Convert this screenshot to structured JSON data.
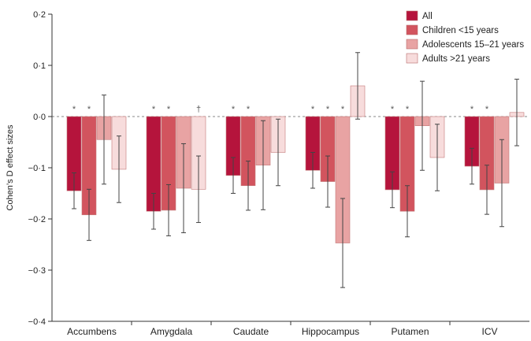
{
  "chart_data": {
    "type": "bar",
    "title": "",
    "xlabel": "",
    "ylabel": "Cohen’s D effect sizes",
    "ylim": [
      -0.4,
      0.2
    ],
    "yticks": [
      {
        "value": 0.2,
        "label": "0·2"
      },
      {
        "value": 0.1,
        "label": "0·1"
      },
      {
        "value": 0.0,
        "label": "0·0"
      },
      {
        "value": -0.1,
        "label": "−0·1"
      },
      {
        "value": -0.2,
        "label": "−0·2"
      },
      {
        "value": -0.3,
        "label": "−0·3"
      },
      {
        "value": -0.4,
        "label": "−0·4"
      }
    ],
    "categories": [
      "Accumbens",
      "Amygdala",
      "Caudate",
      "Hippocampus",
      "Putamen",
      "ICV"
    ],
    "legend_position": "top-right",
    "series": [
      {
        "name": "All",
        "color": "#b5143c",
        "values": [
          -0.145,
          -0.185,
          -0.115,
          -0.105,
          -0.143,
          -0.097
        ],
        "errors": [
          0.035,
          0.035,
          0.035,
          0.035,
          0.035,
          0.035
        ],
        "markers": [
          "*",
          "*",
          "*",
          "*",
          "*",
          "*"
        ]
      },
      {
        "name": "Children <15 years",
        "color": "#d2545e",
        "values": [
          -0.192,
          -0.183,
          -0.135,
          -0.127,
          -0.185,
          -0.143
        ],
        "errors": [
          0.05,
          0.05,
          0.048,
          0.05,
          0.05,
          0.048
        ],
        "markers": [
          "*",
          "*",
          "*",
          "*",
          "*",
          "*"
        ]
      },
      {
        "name": "Adolescents 15–21 years",
        "color": "#e8a3a3",
        "values": [
          -0.045,
          -0.14,
          -0.095,
          -0.247,
          -0.018,
          -0.13
        ],
        "errors": [
          0.087,
          0.087,
          0.087,
          0.087,
          0.087,
          0.085
        ],
        "markers": [
          "",
          "",
          "",
          "*",
          "",
          ""
        ]
      },
      {
        "name": "Adults >21 years",
        "color": "#f7dcdc",
        "values": [
          -0.103,
          -0.142,
          -0.07,
          0.06,
          -0.08,
          0.008
        ],
        "errors": [
          0.065,
          0.065,
          0.065,
          0.065,
          0.065,
          0.065
        ],
        "markers": [
          "",
          "†",
          "",
          "",
          "",
          ""
        ]
      }
    ]
  }
}
